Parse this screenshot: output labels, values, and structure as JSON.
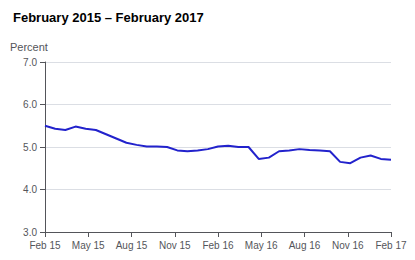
{
  "chart_data": {
    "type": "line",
    "title": "February 2015 – February 2017",
    "y_label": "Percent",
    "x": [
      0,
      0.235294,
      0.470588,
      0.705882,
      0.941176,
      1.176471,
      1.411765,
      1.647059,
      1.882353,
      2.117647,
      2.352941,
      2.588235,
      2.823529,
      3.058824,
      3.294118,
      3.529412,
      3.764706,
      4,
      4.235294,
      4.470588,
      4.705882,
      4.941176,
      5.176471,
      5.411765,
      5.647059,
      5.882353,
      6.117647,
      6.352941,
      6.588235,
      6.823529,
      7.058824,
      7.294118,
      7.529412,
      7.764706,
      8
    ],
    "values": [
      5.5,
      5.43,
      5.4,
      5.48,
      5.43,
      5.4,
      5.3,
      5.2,
      5.1,
      5.05,
      5.01,
      5.01,
      5.0,
      4.92,
      4.9,
      4.92,
      4.95,
      5.01,
      5.03,
      5.0,
      5.0,
      4.72,
      4.75,
      4.9,
      4.92,
      4.95,
      4.93,
      4.92,
      4.9,
      4.65,
      4.62,
      4.75,
      4.8,
      4.72,
      4.7
    ],
    "color": "#2222cc",
    "xlim": [
      0,
      8
    ],
    "xticks": [
      {
        "value": 0,
        "label": "Feb 15"
      },
      {
        "value": 1,
        "label": "May 15"
      },
      {
        "value": 2,
        "label": "Aug 15"
      },
      {
        "value": 3,
        "label": "Nov 15"
      },
      {
        "value": 4,
        "label": "Feb 16"
      },
      {
        "value": 5,
        "label": "May 16"
      },
      {
        "value": 6,
        "label": "Aug 16"
      },
      {
        "value": 7,
        "label": "Nov 16"
      },
      {
        "value": 8,
        "label": "Feb 17"
      }
    ],
    "ylim": [
      3.0,
      7.0
    ],
    "yticks": [
      {
        "value": 3.0,
        "label": "3.0"
      },
      {
        "value": 4.0,
        "label": "4.0"
      },
      {
        "value": 5.0,
        "label": "5.0"
      },
      {
        "value": 6.0,
        "label": "6.0"
      },
      {
        "value": 7.0,
        "label": "7.0"
      }
    ],
    "grid": true
  }
}
